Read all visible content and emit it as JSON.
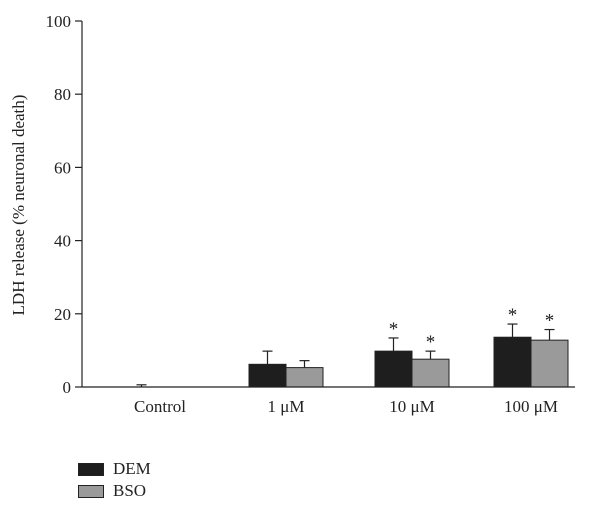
{
  "chart_data": {
    "type": "bar",
    "categories": [
      "Control",
      "1 μM",
      "10 μM",
      "100 μM"
    ],
    "ylabel": "LDH release (% neuronal death)",
    "xlabel": "",
    "ylim": [
      0,
      100
    ],
    "yticks": [
      0,
      20,
      40,
      60,
      80,
      100
    ],
    "grid": false,
    "legend_position": "bottom-left",
    "series": [
      {
        "name": "DEM",
        "color": "#1e1e1e",
        "values": [
          0,
          6.2,
          9.8,
          13.6
        ],
        "errors": [
          0.6,
          3.6,
          3.6,
          3.6
        ],
        "significant": [
          false,
          false,
          true,
          true
        ]
      },
      {
        "name": "BSO",
        "color": "#9a9a9a",
        "values": [
          0,
          5.3,
          7.6,
          12.8
        ],
        "errors": [
          0,
          1.9,
          2.2,
          2.9
        ],
        "significant": [
          false,
          false,
          true,
          true
        ]
      }
    ],
    "significance_marker": "*"
  }
}
